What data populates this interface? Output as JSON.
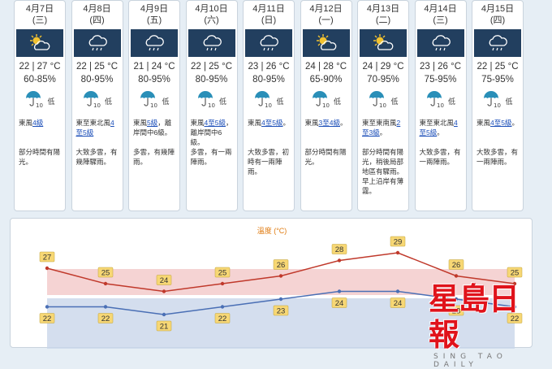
{
  "forecast": [
    {
      "date": "4月7日",
      "weekday": "(三)",
      "icon": "sun-cloud-icon",
      "temp": "22 | 27 °C",
      "humidity": "60-85%",
      "rain_level": "低",
      "wind_pre": "東風",
      "wind_link": "4級",
      "wind_post": "",
      "details": "部分時間有陽光。"
    },
    {
      "date": "4月8日",
      "weekday": "(四)",
      "icon": "cloud-rain-icon",
      "temp": "22 | 25 °C",
      "humidity": "80-95%",
      "rain_level": "低",
      "wind_pre": "東至東北風",
      "wind_link": "4至5級",
      "wind_post": "",
      "details": "大致多雲，有幾陣驟雨。"
    },
    {
      "date": "4月9日",
      "weekday": "(五)",
      "icon": "cloud-rain-icon",
      "temp": "21 | 24 °C",
      "humidity": "80-95%",
      "rain_level": "低",
      "wind_pre": "東風",
      "wind_link": "5級",
      "wind_post": "，離岸間中6級。",
      "details": "多雲，有幾陣雨。"
    },
    {
      "date": "4月10日",
      "weekday": "(六)",
      "icon": "cloud-rain-icon",
      "temp": "22 | 25 °C",
      "humidity": "80-95%",
      "rain_level": "低",
      "wind_pre": "東風",
      "wind_link": "4至5級",
      "wind_post": "，離岸間中6級。",
      "details": "多雲，有一兩陣雨。"
    },
    {
      "date": "4月11日",
      "weekday": "(日)",
      "icon": "cloud-rain-icon",
      "temp": "23 | 26 °C",
      "humidity": "80-95%",
      "rain_level": "低",
      "wind_pre": "東風",
      "wind_link": "4至5級",
      "wind_post": "。",
      "details": "大致多雲，初時有一兩陣雨。"
    },
    {
      "date": "4月12日",
      "weekday": "(一)",
      "icon": "sun-cloud-icon",
      "temp": "24 | 28 °C",
      "humidity": "65-90%",
      "rain_level": "低",
      "wind_pre": "東風",
      "wind_link": "3至4級",
      "wind_post": "。",
      "details": "部分時間有陽光。"
    },
    {
      "date": "4月13日",
      "weekday": "(二)",
      "icon": "sun-cloud-icon",
      "temp": "24 | 29 °C",
      "humidity": "70-95%",
      "rain_level": "低",
      "wind_pre": "東至東南風",
      "wind_link": "2至3級",
      "wind_post": "。",
      "details": "部分時間有陽光，稍後局部地區有驟雨。早上沿岸有薄霧。"
    },
    {
      "date": "4月14日",
      "weekday": "(三)",
      "icon": "cloud-rain-icon",
      "temp": "23 | 26 °C",
      "humidity": "75-95%",
      "rain_level": "低",
      "wind_pre": "東至東北風",
      "wind_link": "4至5級",
      "wind_post": "。",
      "details": "大致多雲，有一兩陣雨。"
    },
    {
      "date": "4月15日",
      "weekday": "(四)",
      "icon": "cloud-rain-icon",
      "temp": "22 | 25 °C",
      "humidity": "75-95%",
      "rain_level": "低",
      "wind_pre": "東風",
      "wind_link": "4至5級",
      "wind_post": "。",
      "details": "大致多雲，有一兩陣雨。"
    }
  ],
  "chart_data": {
    "type": "line",
    "title": "溫度 (°C)",
    "categories": [
      "4月7日",
      "4月8日",
      "4月9日",
      "4月10日",
      "4月11日",
      "4月12日",
      "4月13日",
      "4月14日",
      "4月15日"
    ],
    "series": [
      {
        "values": [
          27,
          25,
          24,
          25,
          26,
          28,
          29,
          26,
          25
        ],
        "color": "#c0392b"
      },
      {
        "values": [
          22,
          22,
          21,
          22,
          23,
          24,
          24,
          23,
          22
        ],
        "color": "#4a6fb5"
      }
    ],
    "ylim": [
      20,
      30
    ],
    "band_high_color": "#f3c8c8",
    "band_low_color": "#c9d6ea"
  },
  "watermark": {
    "main": "星島日報",
    "sub": "SING TAO DAILY"
  },
  "colors": {
    "icon_bg": "#223f5f",
    "link": "#1b4eb8",
    "label_bg": "#f7d774"
  }
}
